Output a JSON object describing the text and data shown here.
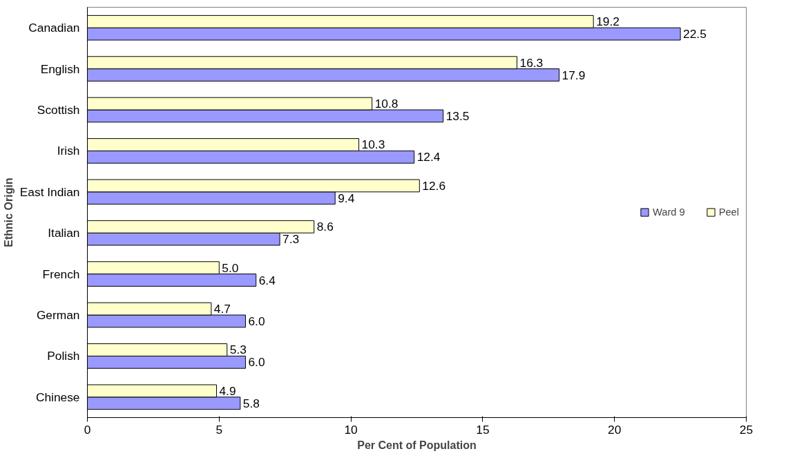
{
  "chart_data": {
    "type": "bar",
    "orientation": "horizontal",
    "xlabel": "Per Cent of Population",
    "ylabel": "Ethnic Origin",
    "categories": [
      "Canadian",
      "English",
      "Scottish",
      "Irish",
      "East Indian",
      "Italian",
      "French",
      "German",
      "Polish",
      "Chinese"
    ],
    "series": [
      {
        "name": "Ward 9",
        "color": "#9999ff",
        "values": [
          22.5,
          17.9,
          13.5,
          12.4,
          9.4,
          7.3,
          6.4,
          6,
          6,
          5.8
        ],
        "value_labels": [
          "22.5",
          "17.9",
          "13.5",
          "12.4",
          "9.4",
          "7.3",
          "6.4",
          "6.0",
          "6.0",
          "5.8"
        ]
      },
      {
        "name": "Peel",
        "color": "#ffffcc",
        "values": [
          19.2,
          16.3,
          10.8,
          10.3,
          12.6,
          8.6,
          5,
          4.7,
          5.3,
          4.9
        ],
        "value_labels": [
          "19.2",
          "16.3",
          "10.8",
          "10.3",
          "12.6",
          "8.6",
          "5.0",
          "4.7",
          "5.3",
          "4.9"
        ]
      }
    ],
    "xlim": [
      0,
      25
    ],
    "xticks": [
      0,
      5,
      10,
      15,
      20,
      25
    ],
    "grid": false,
    "legend": "right"
  }
}
